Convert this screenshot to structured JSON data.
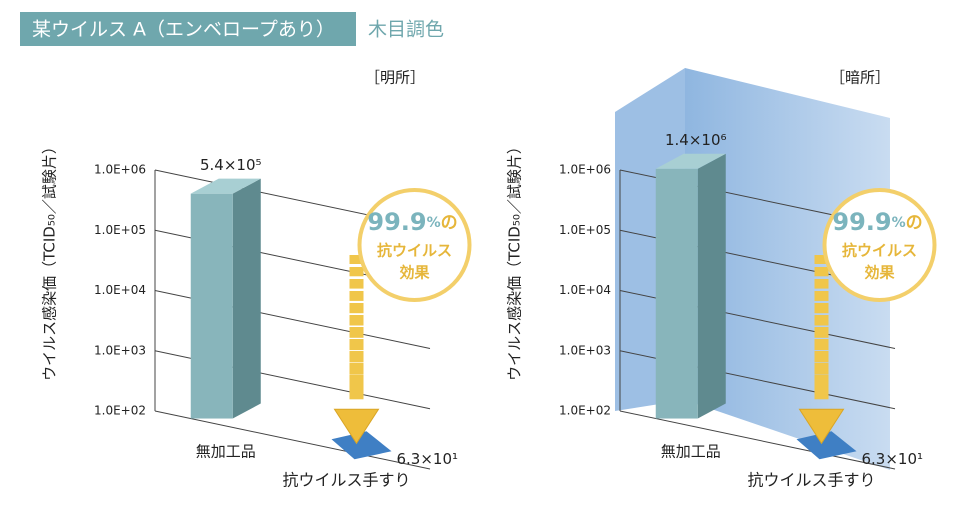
{
  "header": {
    "title": "某ウイルス A（エンベロープあり）",
    "subtitle": "木目調色"
  },
  "chart_data": [
    {
      "type": "bar3d",
      "title": "［明所］",
      "y_label": "ウイルス感染価（TCID₅₀／試験片）",
      "categories": [
        "無加工品",
        "抗ウイルス手すり"
      ],
      "values": [
        540000,
        63
      ],
      "value_labels": [
        "5.4×10⁵",
        "6.3×10¹"
      ],
      "colors": [
        "#88b5bb",
        "#3f7fc4"
      ],
      "log_scale": true,
      "ylim": [
        100,
        1000000
      ],
      "yticks": [
        {
          "value": 100,
          "label": "1.0E+02"
        },
        {
          "value": 1000,
          "label": "1.0E+03"
        },
        {
          "value": 10000,
          "label": "1.0E+04"
        },
        {
          "value": 100000,
          "label": "1.0E+05"
        },
        {
          "value": 1000000,
          "label": "1.0E+06"
        }
      ],
      "grid": true,
      "wall": false,
      "annotation": {
        "value": "99.9",
        "unit": "%",
        "particle": "の",
        "lines": [
          "抗ウイルス",
          "効果"
        ]
      }
    },
    {
      "type": "bar3d",
      "title": "［暗所］",
      "y_label": "ウイルス感染価（TCID₅₀／試験片）",
      "categories": [
        "無加工品",
        "抗ウイルス手すり"
      ],
      "values": [
        1400000,
        63
      ],
      "value_labels": [
        "1.4×10⁶",
        "6.3×10¹"
      ],
      "colors": [
        "#88b5bb",
        "#3f7fc4"
      ],
      "log_scale": true,
      "ylim": [
        100,
        1000000
      ],
      "yticks": [
        {
          "value": 100,
          "label": "1.0E+02"
        },
        {
          "value": 1000,
          "label": "1.0E+03"
        },
        {
          "value": 10000,
          "label": "1.0E+04"
        },
        {
          "value": 100000,
          "label": "1.0E+05"
        },
        {
          "value": 1000000,
          "label": "1.0E+06"
        }
      ],
      "grid": true,
      "wall": true,
      "annotation": {
        "value": "99.9",
        "unit": "%",
        "particle": "の",
        "lines": [
          "抗ウイルス",
          "効果"
        ]
      }
    }
  ]
}
